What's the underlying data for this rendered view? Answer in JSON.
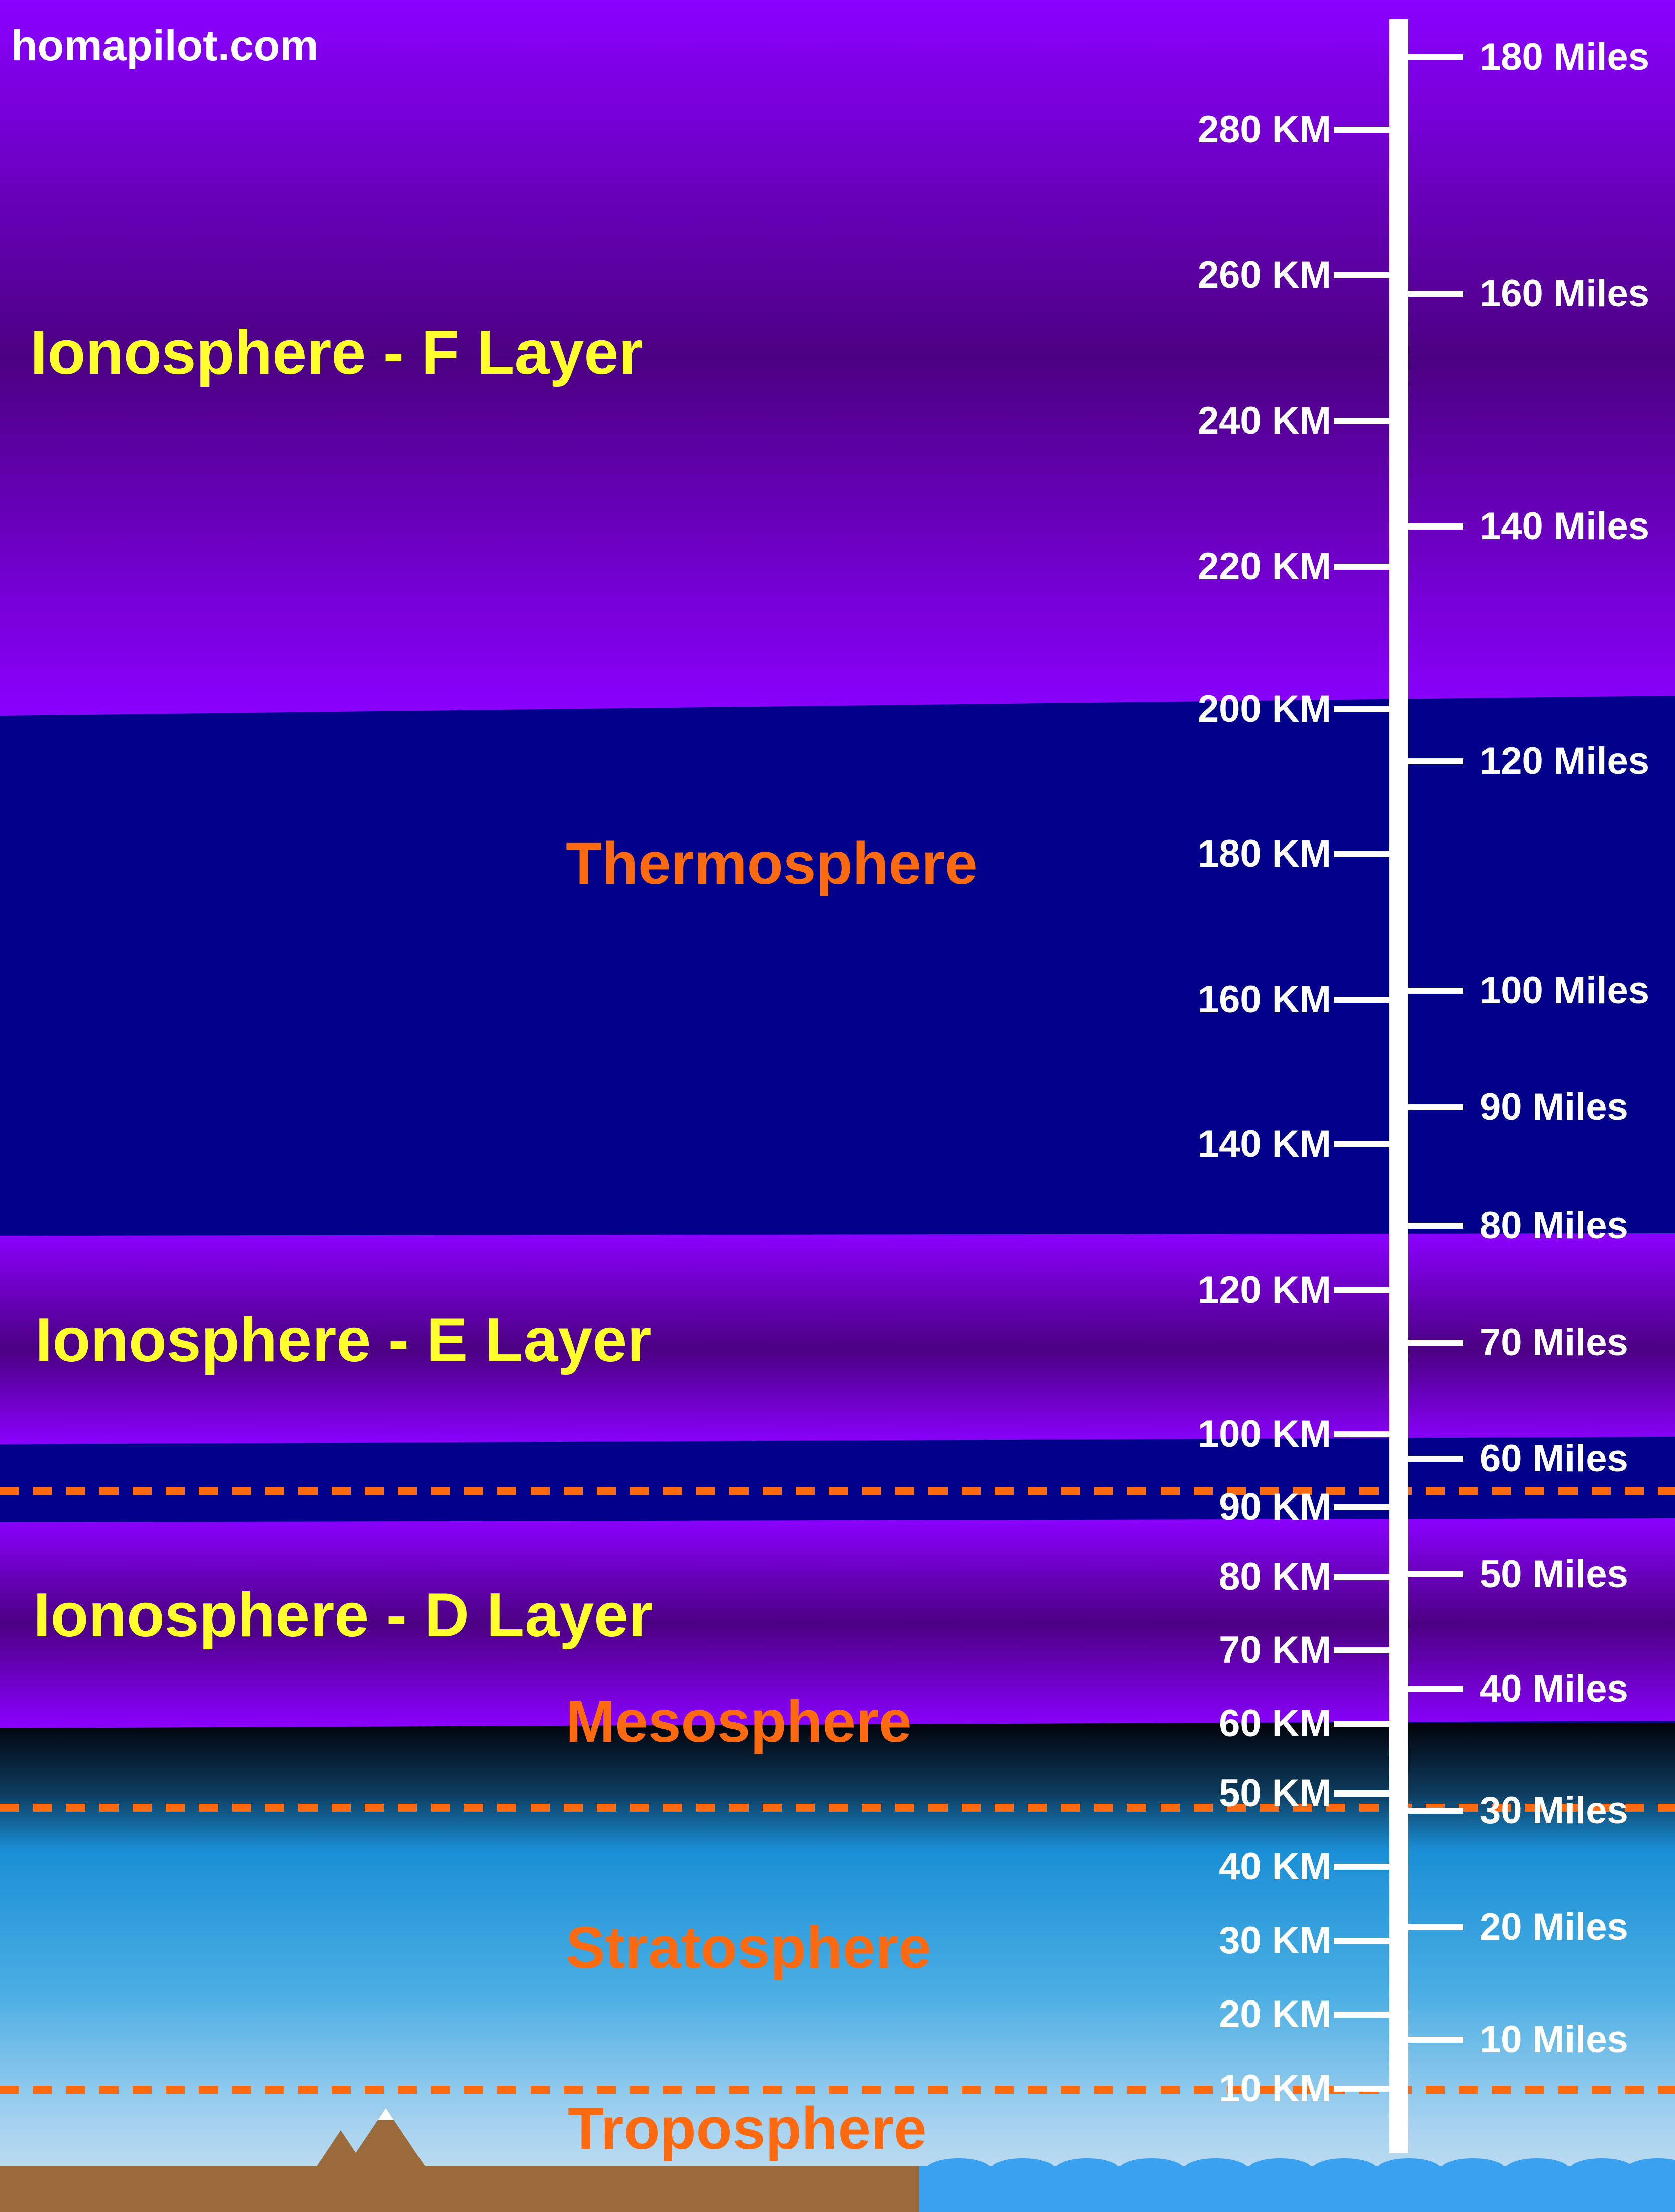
{
  "site": "homapilot.com",
  "layers": {
    "f_layer": "Ionosphere - F Layer",
    "e_layer": "Ionosphere - E Layer",
    "d_layer": "Ionosphere - D Layer"
  },
  "regions": {
    "thermosphere": "Thermosphere",
    "mesosphere": "Mesosphere",
    "stratosphere": "Stratosphere",
    "troposphere": "Troposphere"
  },
  "scale": {
    "km": [
      {
        "value": 280,
        "label": "280 KM"
      },
      {
        "value": 260,
        "label": "260 KM"
      },
      {
        "value": 240,
        "label": "240 KM"
      },
      {
        "value": 220,
        "label": "220 KM"
      },
      {
        "value": 200,
        "label": "200 KM"
      },
      {
        "value": 180,
        "label": "180 KM"
      },
      {
        "value": 160,
        "label": "160 KM"
      },
      {
        "value": 140,
        "label": "140 KM"
      },
      {
        "value": 120,
        "label": "120 KM"
      },
      {
        "value": 100,
        "label": "100 KM"
      },
      {
        "value": 90,
        "label": "90 KM"
      },
      {
        "value": 80,
        "label": "80 KM"
      },
      {
        "value": 70,
        "label": "70 KM"
      },
      {
        "value": 60,
        "label": "60 KM"
      },
      {
        "value": 50,
        "label": "50 KM"
      },
      {
        "value": 40,
        "label": "40 KM"
      },
      {
        "value": 30,
        "label": "30 KM"
      },
      {
        "value": 20,
        "label": "20 KM"
      },
      {
        "value": 10,
        "label": "10 KM"
      }
    ],
    "miles": [
      {
        "value": 180,
        "label": "180 Miles"
      },
      {
        "value": 160,
        "label": "160 Miles"
      },
      {
        "value": 140,
        "label": "140 Miles"
      },
      {
        "value": 120,
        "label": "120 Miles"
      },
      {
        "value": 100,
        "label": "100 Miles"
      },
      {
        "value": 90,
        "label": "90 Miles"
      },
      {
        "value": 80,
        "label": "80 Miles"
      },
      {
        "value": 70,
        "label": "70 Miles"
      },
      {
        "value": 60,
        "label": "60 Miles"
      },
      {
        "value": 50,
        "label": "50 Miles"
      },
      {
        "value": 40,
        "label": "40 Miles"
      },
      {
        "value": 30,
        "label": "30 Miles"
      },
      {
        "value": 20,
        "label": "20 Miles"
      },
      {
        "value": 10,
        "label": "10 Miles"
      }
    ]
  },
  "colors": {
    "ionosphere_edge": "#8b00ff",
    "ionosphere_core": "#4b0082",
    "thermosphere": "#00008b",
    "stratosphere_top": "#1e90d0",
    "troposphere": "#c8dff0",
    "boundary_dash": "#ff6a10",
    "ground": "#9b6a3a",
    "ocean": "#3aa0f0",
    "scale": "#ffffff",
    "layer_text": "#ffff2e",
    "region_text": "#ff6a10"
  }
}
